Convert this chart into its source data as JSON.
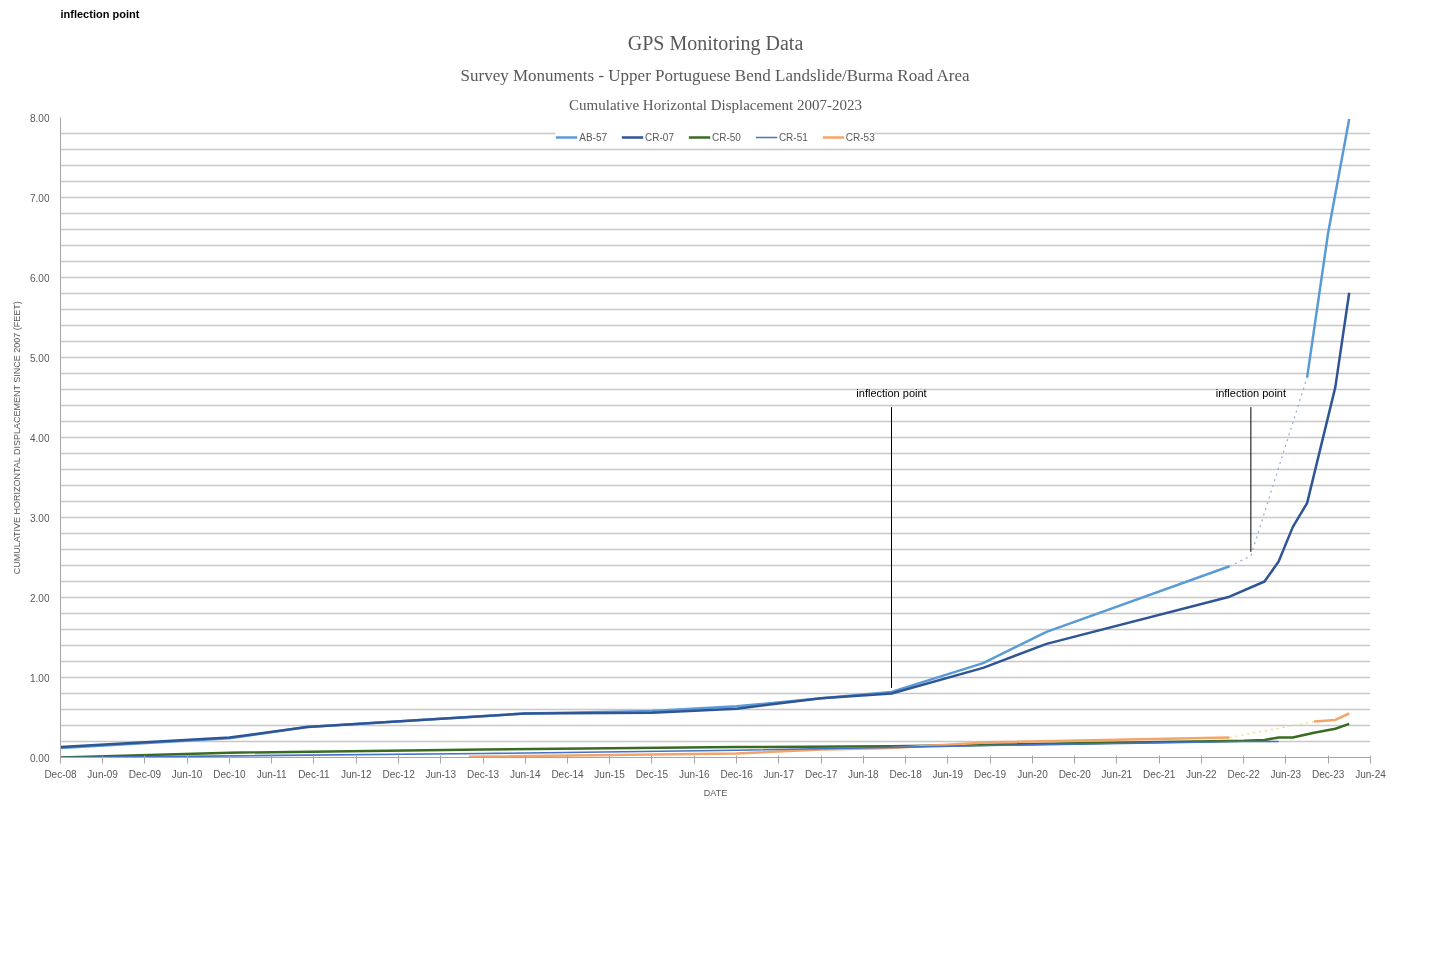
{
  "chart_data": {
    "type": "line",
    "title": "GPS Monitoring Data",
    "subtitle": "Survey Monuments - Upper Portuguese Bend Landslide/Burma Road Area",
    "xlabel": "DATE",
    "ylabel": "CUMULATIVE HORIZONTAL DISPLACEMENT SINCE 2007 (FEET)",
    "series": [
      {
        "name": "AB-57",
        "color": "#5b9bd5",
        "x": [
          "2008-12",
          "2010-12",
          "2011-11",
          "2014-06",
          "2015-12",
          "2016-12",
          "2017-12",
          "2018-10",
          "2019-11",
          "2020-08",
          "2022-10"
        ],
        "values": [
          0.12,
          0.24,
          0.38,
          0.55,
          0.58,
          0.64,
          0.74,
          0.82,
          1.18,
          1.57,
          2.39
        ]
      },
      {
        "color": "#8fa9d9",
        "line_style": "dotted",
        "x": [
          "2022-10",
          "2023-01",
          "2023-09"
        ],
        "values": [
          2.39,
          2.52,
          4.75
        ]
      },
      {
        "color": "#5b9bd5",
        "x": [
          "2023-09",
          "2023-12",
          "2024-03"
        ],
        "values": [
          4.75,
          6.56,
          7.98
        ]
      },
      {
        "name": "CR-07",
        "color": "#2f5597",
        "x": [
          "2008-12",
          "2010-12",
          "2011-11",
          "2014-06",
          "2015-12",
          "2016-12",
          "2017-12",
          "2018-10",
          "2019-11",
          "2020-08",
          "2022-10",
          "2023-03",
          "2023-05",
          "2023-07",
          "2023-09",
          "2024-01",
          "2024-03"
        ],
        "values": [
          0.13,
          0.25,
          0.38,
          0.55,
          0.56,
          0.61,
          0.74,
          0.8,
          1.12,
          1.42,
          2.01,
          2.2,
          2.45,
          2.88,
          3.18,
          4.63,
          5.81
        ]
      },
      {
        "name": "CR-50",
        "color": "#3a6b22",
        "x": [
          "2008-12",
          "2010-12",
          "2013-12",
          "2016-12",
          "2018-10",
          "2019-12",
          "2022-12",
          "2023-03",
          "2023-05",
          "2023-07",
          "2023-10",
          "2024-01",
          "2024-03"
        ],
        "values": [
          0.0,
          0.06,
          0.1,
          0.13,
          0.14,
          0.16,
          0.21,
          0.22,
          0.25,
          0.25,
          0.31,
          0.36,
          0.42
        ]
      },
      {
        "name": "CR-51",
        "color": "#4472c4",
        "x": [
          "2008-12",
          "2013-12",
          "2016-12",
          "2018-12",
          "2019-12",
          "2022-12",
          "2023-05"
        ],
        "values": [
          0.0,
          0.05,
          0.09,
          0.13,
          0.15,
          0.2,
          0.2
        ]
      },
      {
        "name": "CR-53",
        "color": "#f4a46a",
        "x": [
          "2013-10",
          "2016-12",
          "2017-12",
          "2018-10",
          "2019-12",
          "2022-10"
        ],
        "values": [
          0.01,
          0.05,
          0.1,
          0.12,
          0.19,
          0.25
        ]
      },
      {
        "color": "#f2d67a",
        "line_style": "dotted",
        "x": [
          "2022-10",
          "2023-10"
        ],
        "values": [
          0.25,
          0.45
        ]
      },
      {
        "color": "#f4a46a",
        "x": [
          "2023-10",
          "2024-01",
          "2024-03"
        ],
        "values": [
          0.45,
          0.47,
          0.55
        ]
      }
    ],
    "annotations": [
      "inflection point",
      "Cumulative Horizontal Displacement 2007-2023",
      {
        "text": "inflection point",
        "x": "2018-10",
        "y": 0.82
      },
      {
        "text": "inflection point",
        "x": "2023-01",
        "y": 2.52
      }
    ],
    "xlim": [
      "2008-12",
      "2024-06"
    ],
    "xticks": [
      {
        "value": "2008-12",
        "label": "Dec-08"
      },
      {
        "value": "2009-06",
        "label": "Jun-09"
      },
      {
        "value": "2009-12",
        "label": "Dec-09"
      },
      {
        "value": "2010-06",
        "label": "Jun-10"
      },
      {
        "value": "2010-12",
        "label": "Dec-10"
      },
      {
        "value": "2011-06",
        "label": "Jun-11"
      },
      {
        "value": "2011-12",
        "label": "Dec-11"
      },
      {
        "value": "2012-06",
        "label": "Jun-12"
      },
      {
        "value": "2012-12",
        "label": "Dec-12"
      },
      {
        "value": "2013-06",
        "label": "Jun-13"
      },
      {
        "value": "2013-12",
        "label": "Dec-13"
      },
      {
        "value": "2014-06",
        "label": "Jun-14"
      },
      {
        "value": "2014-12",
        "label": "Dec-14"
      },
      {
        "value": "2015-06",
        "label": "Jun-15"
      },
      {
        "value": "2015-12",
        "label": "Dec-15"
      },
      {
        "value": "2016-06",
        "label": "Jun-16"
      },
      {
        "value": "2016-12",
        "label": "Dec-16"
      },
      {
        "value": "2017-06",
        "label": "Jun-17"
      },
      {
        "value": "2017-12",
        "label": "Dec-17"
      },
      {
        "value": "2018-06",
        "label": "Jun-18"
      },
      {
        "value": "2018-12",
        "label": "Dec-18"
      },
      {
        "value": "2019-06",
        "label": "Jun-19"
      },
      {
        "value": "2019-12",
        "label": "Dec-19"
      },
      {
        "value": "2020-06",
        "label": "Jun-20"
      },
      {
        "value": "2020-12",
        "label": "Dec-20"
      },
      {
        "value": "2021-06",
        "label": "Jun-21"
      },
      {
        "value": "2021-12",
        "label": "Dec-21"
      },
      {
        "value": "2022-06",
        "label": "Jun-22"
      },
      {
        "value": "2022-12",
        "label": "Dec-22"
      },
      {
        "value": "2023-06",
        "label": "Jun-23"
      },
      {
        "value": "2023-12",
        "label": "Dec-23"
      },
      {
        "value": "2024-06",
        "label": "Jun-24"
      }
    ],
    "ylim": [
      0,
      8
    ],
    "yticks": [
      {
        "value": 0,
        "label": "0.00"
      },
      {
        "value": 0.2,
        "label": null
      },
      {
        "value": 0.4,
        "label": null
      },
      {
        "value": 0.6,
        "label": null
      },
      {
        "value": 0.8,
        "label": null
      },
      {
        "value": 1,
        "label": "1.00"
      },
      {
        "value": 1.2,
        "label": null
      },
      {
        "value": 1.4,
        "label": null
      },
      {
        "value": 1.6,
        "label": null
      },
      {
        "value": 1.8,
        "label": null
      },
      {
        "value": 2,
        "label": "2.00"
      },
      {
        "value": 2.2,
        "label": null
      },
      {
        "value": 2.4,
        "label": null
      },
      {
        "value": 2.6,
        "label": null
      },
      {
        "value": 2.8,
        "label": null
      },
      {
        "value": 3,
        "label": "3.00"
      },
      {
        "value": 3.2,
        "label": null
      },
      {
        "value": 3.4,
        "label": null
      },
      {
        "value": 3.6,
        "label": null
      },
      {
        "value": 3.8,
        "label": null
      },
      {
        "value": 4,
        "label": "4.00"
      },
      {
        "value": 4.2,
        "label": null
      },
      {
        "value": 4.4,
        "label": null
      },
      {
        "value": 4.6,
        "label": null
      },
      {
        "value": 4.8,
        "label": null
      },
      {
        "value": 5,
        "label": "5.00"
      },
      {
        "value": 5.2,
        "label": null
      },
      {
        "value": 5.4,
        "label": null
      },
      {
        "value": 5.6,
        "label": null
      },
      {
        "value": 5.8,
        "label": null
      },
      {
        "value": 6,
        "label": "6.00"
      },
      {
        "value": 6.2,
        "label": null
      },
      {
        "value": 6.4,
        "label": null
      },
      {
        "value": 6.6,
        "label": null
      },
      {
        "value": 6.8,
        "label": null
      },
      {
        "value": 7,
        "label": "7.00"
      },
      {
        "value": 7.2,
        "label": null
      },
      {
        "value": 7.4,
        "label": null
      },
      {
        "value": 7.6,
        "label": null
      },
      {
        "value": 7.8,
        "label": null
      },
      {
        "value": 8,
        "label": "8.00"
      }
    ],
    "grid": "y",
    "legend": "top"
  }
}
